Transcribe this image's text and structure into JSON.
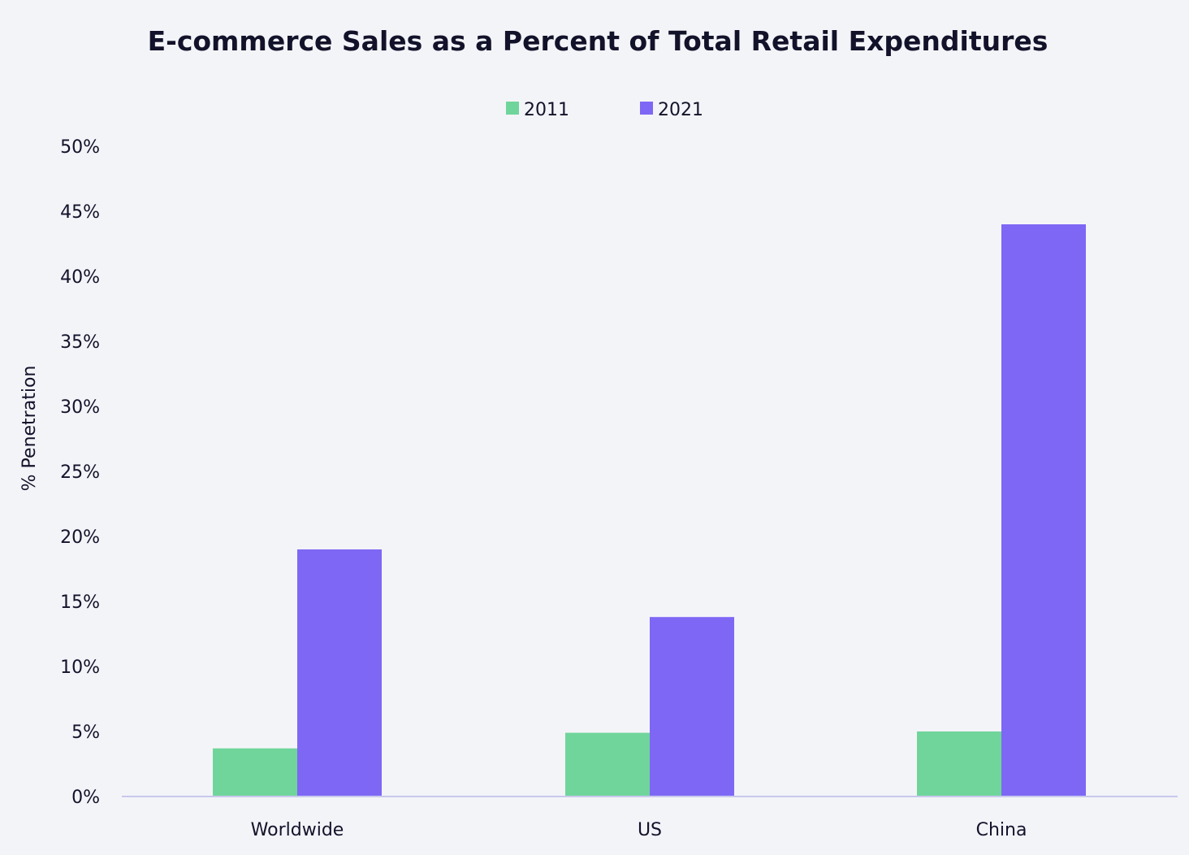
{
  "chart_data": {
    "type": "bar",
    "title": "E-commerce Sales as a Percent of Total Retail Expenditures",
    "xlabel": "",
    "ylabel": "% Penetration",
    "categories": [
      "Worldwide",
      "US",
      "China"
    ],
    "series": [
      {
        "name": "2011",
        "color": "#70d59b",
        "values": [
          3.7,
          4.9,
          5.0
        ]
      },
      {
        "name": "2021",
        "color": "#7e67f5",
        "values": [
          19.0,
          13.8,
          44.0
        ]
      }
    ],
    "ylim": [
      0,
      50
    ],
    "yticks": [
      0,
      5,
      10,
      15,
      20,
      25,
      30,
      35,
      40,
      45,
      50
    ],
    "ytick_labels": [
      "0%",
      "5%",
      "10%",
      "15%",
      "20%",
      "25%",
      "30%",
      "35%",
      "40%",
      "45%",
      "50%"
    ],
    "legend_position": "top-center",
    "grid": false,
    "axis_color": "#c9c8ec"
  }
}
